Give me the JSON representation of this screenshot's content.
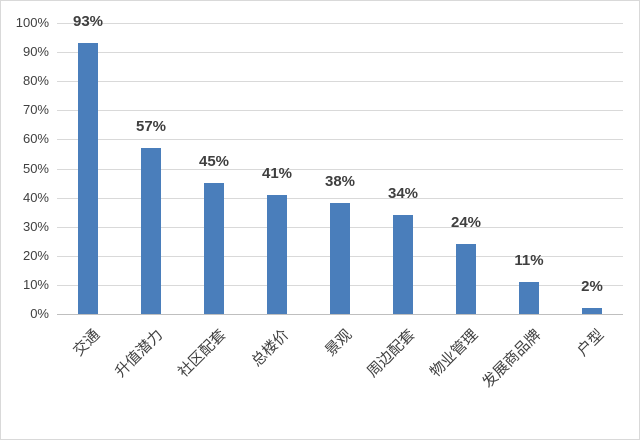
{
  "chart_data": {
    "type": "bar",
    "title": "",
    "xlabel": "",
    "ylabel": "",
    "categories": [
      "交通",
      "升值潜力",
      "社区配套",
      "总楼价",
      "景观",
      "周边配套",
      "物业管理",
      "发展商品牌",
      "户型"
    ],
    "values": [
      93,
      57,
      45,
      41,
      38,
      34,
      24,
      11,
      2
    ],
    "data_labels": [
      "93%",
      "57%",
      "45%",
      "41%",
      "38%",
      "34%",
      "24%",
      "11%",
      "2%"
    ],
    "ytick_values": [
      0,
      10,
      20,
      30,
      40,
      50,
      60,
      70,
      80,
      90,
      100
    ],
    "ytick_labels": [
      "0%",
      "10%",
      "20%",
      "30%",
      "40%",
      "50%",
      "60%",
      "70%",
      "80%",
      "90%",
      "100%"
    ],
    "ylim": [
      0,
      100
    ],
    "grid": true,
    "legend": false,
    "colors": {
      "bar": "#4A7EBB",
      "gridline": "#D9D9D9",
      "axis_line": "#BFBFBF",
      "data_label_text": "#3F3F3F",
      "tick_text": "#404040",
      "frame_border": "#D9D9D9",
      "background": "#FFFFFF"
    }
  }
}
